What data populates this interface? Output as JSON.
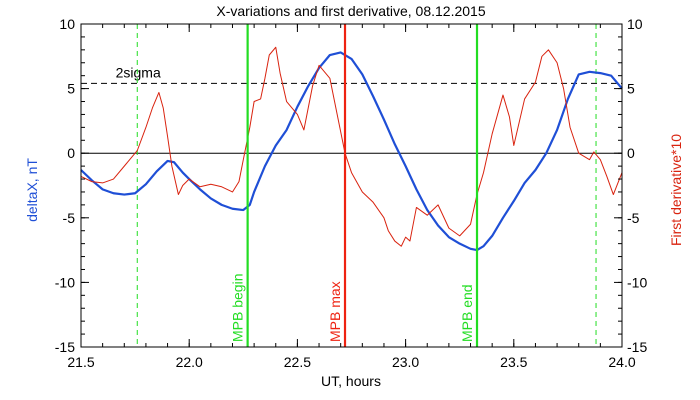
{
  "chart_data": {
    "type": "line",
    "title": "X-variations and first derivative, 08.12.2015",
    "xlabel": "UT, hours",
    "ylabel_left": "deltaX, nT",
    "ylabel_right": "First derivative*10",
    "xlim": [
      21.5,
      24.0
    ],
    "ylim_left": [
      -15,
      10
    ],
    "ylim_right": [
      -15,
      10
    ],
    "x_ticks": [
      21.5,
      22.0,
      22.5,
      23.0,
      23.5,
      24.0
    ],
    "x_tick_labels": [
      "21.5",
      "22.0",
      "22.5",
      "23.0",
      "23.5",
      "24.0"
    ],
    "y_ticks": [
      -15,
      -10,
      -5,
      0,
      5,
      10
    ],
    "y_tick_labels": [
      "-15",
      "-10",
      "-5",
      "0",
      "5",
      "10"
    ],
    "colors": {
      "deltaX": "#1f4fd6",
      "derivative": "#d9230f",
      "green": "#22dd22",
      "red_marker": "#ee2211",
      "axis": "#000000"
    },
    "series": [
      {
        "axis": "left",
        "color": "#1f4fd6",
        "x": [
          21.5,
          21.55,
          21.6,
          21.65,
          21.7,
          21.75,
          21.8,
          21.85,
          21.9,
          21.93,
          21.97,
          22.0,
          22.05,
          22.1,
          22.15,
          22.2,
          22.25,
          22.28,
          22.3,
          22.35,
          22.4,
          22.45,
          22.5,
          22.55,
          22.6,
          22.65,
          22.7,
          22.75,
          22.8,
          22.85,
          22.9,
          22.95,
          23.0,
          23.05,
          23.1,
          23.15,
          23.2,
          23.25,
          23.3,
          23.33,
          23.36,
          23.4,
          23.45,
          23.5,
          23.55,
          23.6,
          23.65,
          23.7,
          23.75,
          23.8,
          23.85,
          23.9,
          23.95,
          24.0
        ],
        "y": [
          -1.3,
          -2.1,
          -2.8,
          -3.1,
          -3.2,
          -3.1,
          -2.4,
          -1.4,
          -0.6,
          -0.7,
          -1.5,
          -2.0,
          -2.8,
          -3.5,
          -4.0,
          -4.3,
          -4.4,
          -4.0,
          -3.0,
          -1.0,
          0.6,
          1.8,
          3.6,
          5.2,
          6.6,
          7.6,
          7.8,
          7.3,
          6.1,
          4.4,
          2.6,
          0.7,
          -1.0,
          -2.8,
          -4.4,
          -5.6,
          -6.5,
          -7.0,
          -7.4,
          -7.5,
          -7.2,
          -6.4,
          -5.0,
          -3.7,
          -2.3,
          -1.3,
          0.0,
          1.8,
          4.2,
          6.1,
          6.3,
          6.2,
          6.0,
          5.0
        ]
      },
      {
        "axis": "right",
        "color": "#d9230f",
        "x": [
          21.5,
          21.55,
          21.6,
          21.65,
          21.7,
          21.72,
          21.76,
          21.8,
          21.83,
          21.86,
          21.88,
          21.9,
          21.92,
          21.95,
          21.97,
          22.0,
          22.05,
          22.1,
          22.15,
          22.2,
          22.23,
          22.25,
          22.28,
          22.3,
          22.33,
          22.35,
          22.37,
          22.4,
          22.42,
          22.45,
          22.5,
          22.53,
          22.57,
          22.6,
          22.65,
          22.72,
          22.75,
          22.8,
          22.85,
          22.9,
          22.92,
          22.95,
          22.98,
          23.0,
          23.02,
          23.05,
          23.1,
          23.15,
          23.2,
          23.25,
          23.3,
          23.33,
          23.36,
          23.4,
          23.45,
          23.48,
          23.5,
          23.55,
          23.6,
          23.63,
          23.66,
          23.7,
          23.73,
          23.76,
          23.8,
          23.85,
          23.87,
          23.9,
          23.93,
          23.96,
          24.0
        ],
        "y": [
          -1.8,
          -2.2,
          -2.3,
          -2.0,
          -1.0,
          -0.6,
          0.2,
          2.0,
          3.5,
          4.7,
          3.5,
          1.3,
          -1.0,
          -3.2,
          -2.5,
          -2.0,
          -2.6,
          -2.4,
          -2.6,
          -3.0,
          -2.2,
          -0.5,
          2.0,
          4.0,
          4.2,
          5.8,
          7.6,
          8.2,
          6.2,
          4.0,
          3.0,
          1.8,
          5.2,
          6.8,
          5.8,
          0.0,
          -1.5,
          -3.0,
          -3.8,
          -5.0,
          -6.0,
          -6.8,
          -7.2,
          -6.5,
          -6.8,
          -4.2,
          -4.8,
          -4.0,
          -5.8,
          -6.4,
          -5.5,
          -3.2,
          -1.5,
          1.5,
          4.5,
          2.8,
          0.6,
          4.2,
          5.5,
          7.5,
          8.0,
          7.0,
          5.0,
          2.0,
          0.0,
          -0.5,
          0.1,
          -0.5,
          -1.8,
          -3.2,
          -1.5
        ]
      }
    ],
    "threshold": {
      "label": "2sigma",
      "value": 5.4
    },
    "markers": [
      {
        "x": 22.27,
        "label": "MPB begin",
        "color": "#22dd22"
      },
      {
        "x": 22.72,
        "label": "MPB max",
        "color": "#ee2211"
      },
      {
        "x": 23.33,
        "label": "MPB end",
        "color": "#22dd22"
      }
    ],
    "dashed_markers": [
      21.76,
      23.88
    ],
    "grid": false
  }
}
